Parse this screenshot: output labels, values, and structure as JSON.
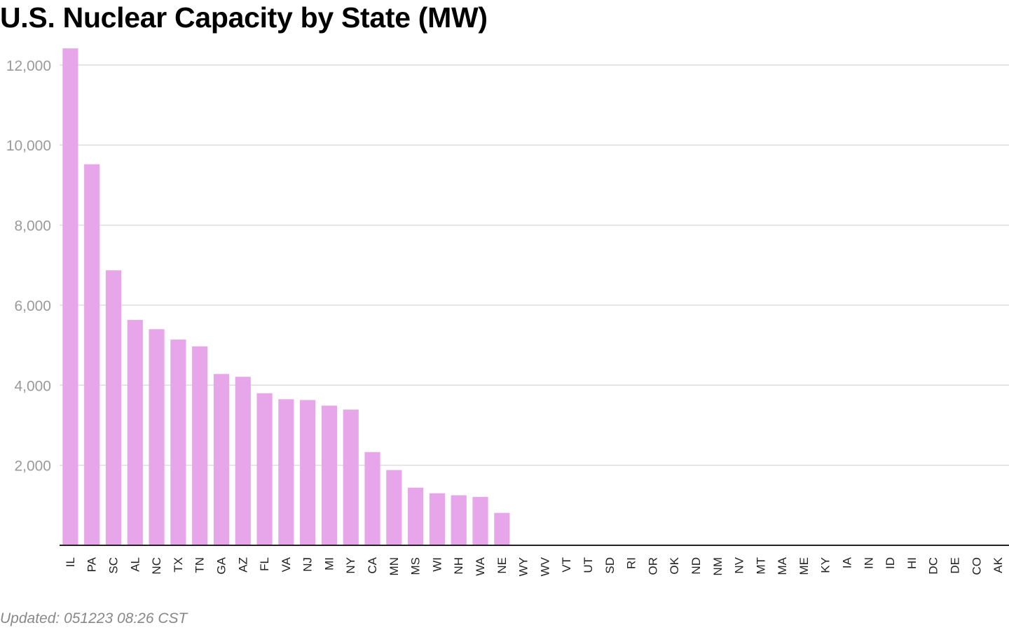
{
  "title": "U.S. Nuclear Capacity by State (MW)",
  "footer": "Updated: 051223 08:26 CST",
  "chart_data": {
    "type": "bar",
    "title": "U.S. Nuclear Capacity by State (MW)",
    "xlabel": "",
    "ylabel": "",
    "bar_color": "#e6a6e9",
    "grid": true,
    "ylim": [
      0,
      12400
    ],
    "yticks": [
      2000,
      4000,
      6000,
      8000,
      10000,
      12000
    ],
    "ytick_labels": [
      "2,000",
      "4,000",
      "6,000",
      "8,000",
      "10,000",
      "12,000"
    ],
    "categories": [
      "IL",
      "PA",
      "SC",
      "AL",
      "NC",
      "TX",
      "TN",
      "GA",
      "AZ",
      "FL",
      "VA",
      "NJ",
      "MI",
      "NY",
      "CA",
      "MN",
      "MS",
      "WI",
      "NH",
      "WA",
      "NE",
      "WY",
      "WV",
      "VT",
      "UT",
      "SD",
      "RI",
      "OR",
      "OK",
      "ND",
      "NM",
      "NV",
      "MT",
      "MA",
      "ME",
      "KY",
      "IA",
      "IN",
      "ID",
      "HI",
      "DC",
      "DE",
      "CO",
      "AK"
    ],
    "values": [
      12415,
      9520,
      6870,
      5630,
      5400,
      5140,
      4970,
      4280,
      4210,
      3800,
      3650,
      3630,
      3490,
      3390,
      2330,
      1880,
      1440,
      1300,
      1250,
      1210,
      810,
      0,
      0,
      0,
      0,
      0,
      0,
      0,
      0,
      0,
      0,
      0,
      0,
      0,
      0,
      0,
      0,
      0,
      0,
      0,
      0,
      0,
      0,
      0
    ]
  }
}
